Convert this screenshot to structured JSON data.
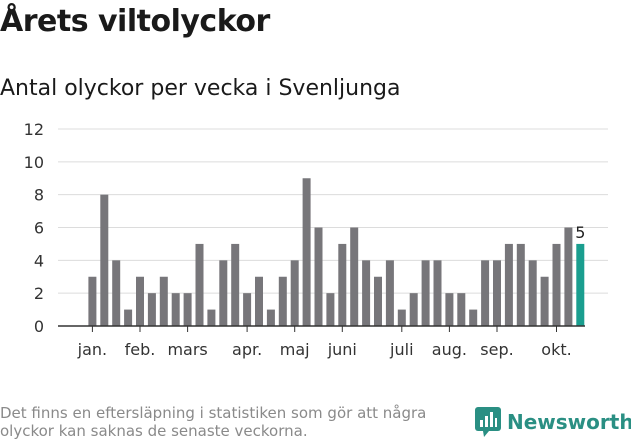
{
  "header": {
    "title": "Årets viltolyckor",
    "subtitle": "Antal olyckor per vecka i Svenljunga"
  },
  "chart_data": {
    "type": "bar",
    "title": "Antal olyckor per vecka i Svenljunga",
    "xlabel": "",
    "ylabel": "",
    "ylim": [
      0,
      12
    ],
    "yticks": [
      "0",
      "2",
      "4",
      "6",
      "8",
      "10",
      "12"
    ],
    "grid": true,
    "month_labels": [
      {
        "label": "jan.",
        "week": 1
      },
      {
        "label": "feb.",
        "week": 5
      },
      {
        "label": "mars",
        "week": 9
      },
      {
        "label": "apr.",
        "week": 14
      },
      {
        "label": "maj",
        "week": 18
      },
      {
        "label": "juni",
        "week": 22
      },
      {
        "label": "juli",
        "week": 27
      },
      {
        "label": "aug.",
        "week": 31
      },
      {
        "label": "sep.",
        "week": 35
      },
      {
        "label": "okt.",
        "week": 40
      }
    ],
    "values": [
      0,
      3,
      8,
      4,
      1,
      3,
      2,
      3,
      2,
      2,
      5,
      1,
      4,
      5,
      2,
      3,
      1,
      3,
      4,
      9,
      6,
      2,
      5,
      6,
      4,
      3,
      4,
      1,
      2,
      4,
      4,
      2,
      2,
      1,
      4,
      4,
      5,
      5,
      4,
      3,
      5,
      6,
      5
    ],
    "highlight_label": "5",
    "colors": {
      "bar": "#77767a",
      "highlight": "#1a9e8f",
      "grid": "#dcdcdc",
      "axis": "#333333"
    }
  },
  "footer": {
    "note": "Det finns en eftersläpning i statistiken som gör att några olyckor kan saknas de senaste veckorna.",
    "brand": "Newsworthy",
    "brand_icon": "bar-chart-logo-icon",
    "brand_color": "#2a8f83"
  }
}
